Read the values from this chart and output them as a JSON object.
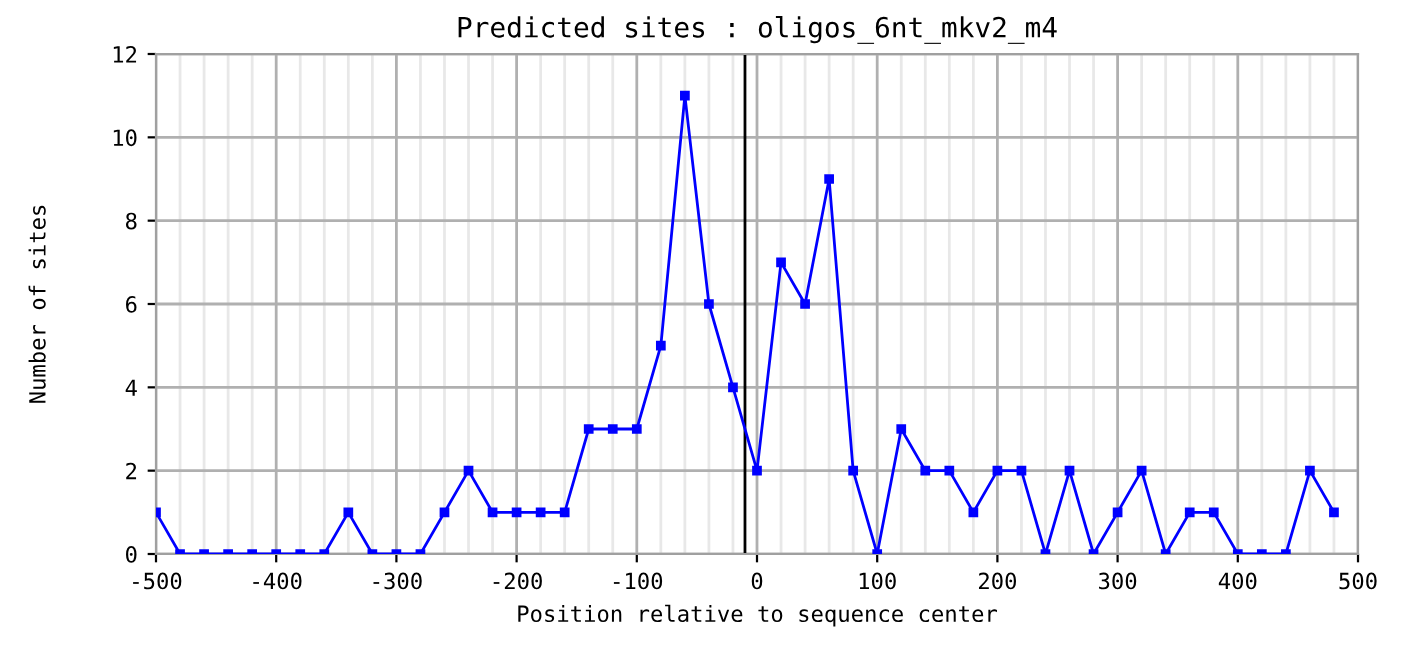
{
  "chart_data": {
    "type": "line",
    "title": "Predicted sites : oligos_6nt_mkv2_m4",
    "xlabel": "Position relative to sequence center",
    "ylabel": "Number of sites",
    "x": [
      -500,
      -480,
      -460,
      -440,
      -420,
      -400,
      -380,
      -360,
      -340,
      -320,
      -300,
      -280,
      -260,
      -240,
      -220,
      -200,
      -180,
      -160,
      -140,
      -120,
      -100,
      -80,
      -60,
      -40,
      -20,
      0,
      20,
      40,
      60,
      80,
      100,
      120,
      140,
      160,
      180,
      200,
      220,
      240,
      260,
      280,
      300,
      320,
      340,
      360,
      380,
      400,
      420,
      440,
      460,
      480
    ],
    "series": [
      {
        "color": "#0000ff",
        "values": [
          1,
          0,
          0,
          0,
          0,
          0,
          0,
          0,
          1,
          0,
          0,
          0,
          1,
          2,
          1,
          1,
          1,
          1,
          3,
          3,
          3,
          5,
          11,
          6,
          4,
          2,
          7,
          6,
          9,
          2,
          0,
          3,
          2,
          2,
          1,
          2,
          2,
          0,
          2,
          0,
          1,
          2,
          0,
          1,
          1,
          0,
          0,
          0,
          2,
          1
        ]
      }
    ],
    "xlim": [
      -500,
      500
    ],
    "xticks": [
      -500,
      -400,
      -300,
      -200,
      -100,
      0,
      100,
      200,
      300,
      400,
      500
    ],
    "ylim": [
      0,
      12
    ],
    "yticks": [
      0,
      2,
      4,
      6,
      8,
      10,
      12
    ],
    "ref_lines": [
      {
        "axis": "x",
        "value": -10,
        "color": "#000000"
      }
    ],
    "grid": true,
    "marker": "square",
    "line_style": "solid"
  }
}
